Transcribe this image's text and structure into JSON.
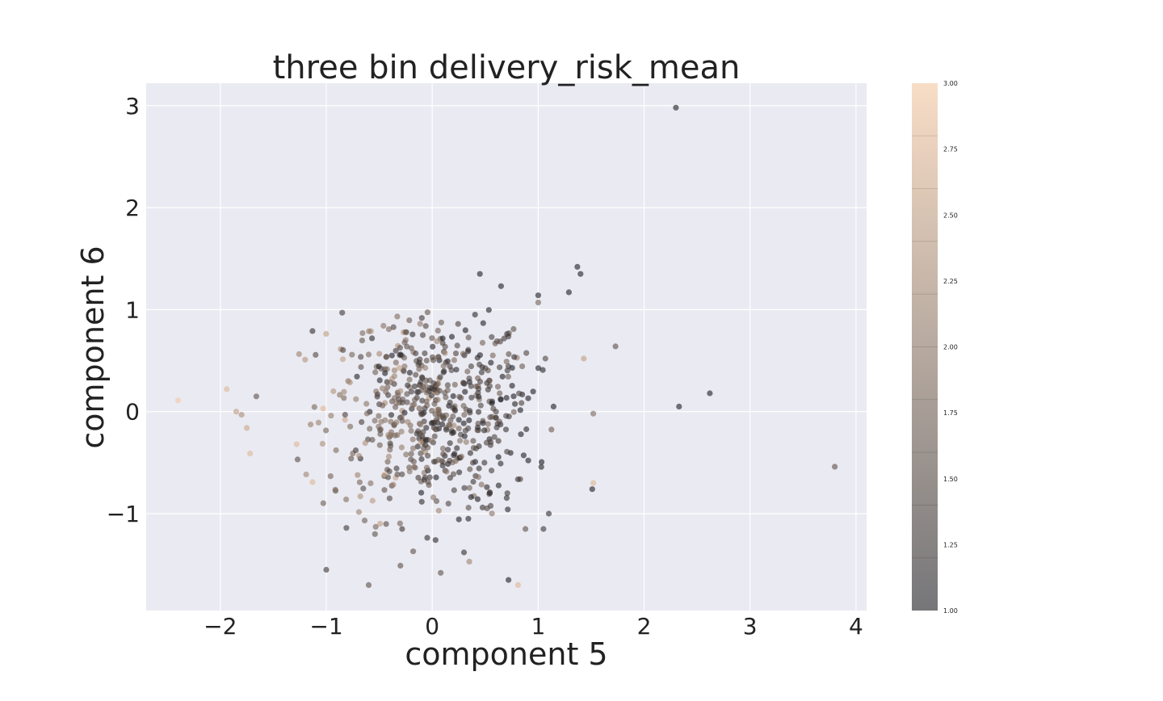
{
  "chart_data": {
    "type": "scatter",
    "title": "three bin delivery_risk_mean",
    "xlabel": "component 5",
    "ylabel": "component 6",
    "xlim": [
      -2.7,
      4.1
    ],
    "ylim": [
      -1.95,
      3.22
    ],
    "xticks": [
      -2,
      -1,
      0,
      1,
      2,
      3,
      4
    ],
    "yticks": [
      -1,
      0,
      1,
      2,
      3
    ],
    "xtick_labels": [
      "−2",
      "−1",
      "0",
      "1",
      "2",
      "3",
      "4"
    ],
    "ytick_labels": [
      "−1",
      "0",
      "1",
      "2",
      "3"
    ],
    "grid": true,
    "colorbar": {
      "min": 1.0,
      "max": 3.0,
      "ticks": [
        1.0,
        1.25,
        1.5,
        1.75,
        2.0,
        2.25,
        2.5,
        2.75,
        3.0
      ],
      "tick_labels": [
        "1.00",
        "1.25",
        "1.50",
        "1.75",
        "2.00",
        "2.25",
        "2.50",
        "2.75",
        "3.00"
      ],
      "levels": 10,
      "colors": [
        "#1a1a1f",
        "#f4c7a1"
      ]
    },
    "n_bulk_points": 620,
    "points": [
      [
        2.3,
        2.98,
        1.0
      ],
      [
        2.62,
        0.18,
        1.0
      ],
      [
        2.33,
        0.05,
        1.0
      ],
      [
        3.8,
        -0.54,
        1.6
      ],
      [
        -2.4,
        0.11,
        3.0
      ],
      [
        -1.94,
        0.22,
        2.8
      ],
      [
        -1.85,
        0.0,
        2.5
      ],
      [
        -1.75,
        -0.16,
        2.6
      ],
      [
        -1.72,
        -0.41,
        2.8
      ],
      [
        -1.66,
        0.15,
        1.6
      ],
      [
        -1.8,
        -0.03,
        2.3
      ],
      [
        1.73,
        0.64,
        1.6
      ],
      [
        1.52,
        -0.02,
        1.9
      ],
      [
        1.52,
        -0.7,
        2.8
      ],
      [
        1.51,
        -0.76,
        1.0
      ],
      [
        1.37,
        1.42,
        1.0
      ],
      [
        1.4,
        1.35,
        1.0
      ],
      [
        1.29,
        1.17,
        1.0
      ],
      [
        1.43,
        0.52,
        2.5
      ],
      [
        1.0,
        1.14,
        1.0
      ],
      [
        1.0,
        1.07,
        1.8
      ],
      [
        0.45,
        1.35,
        1.0
      ],
      [
        0.65,
        1.23,
        1.0
      ],
      [
        -0.6,
        -1.7,
        1.6
      ],
      [
        0.72,
        -1.65,
        1.0
      ],
      [
        0.81,
        -1.7,
        2.8
      ],
      [
        -1.0,
        -1.55,
        1.3
      ],
      [
        0.08,
        -1.58,
        1.6
      ],
      [
        0.3,
        -1.38,
        1.2
      ],
      [
        0.35,
        -1.47,
        2.2
      ],
      [
        -0.18,
        -1.37,
        1.6
      ],
      [
        -0.3,
        -1.51,
        1.6
      ],
      [
        1.05,
        -1.15,
        1.3
      ],
      [
        0.88,
        -1.15,
        1.6
      ],
      [
        1.1,
        -1.0,
        1.2
      ],
      [
        -0.81,
        -1.14,
        1.3
      ],
      [
        -0.54,
        -1.2,
        1.6
      ],
      [
        -1.13,
        -0.69,
        2.8
      ],
      [
        -1.28,
        -0.32,
        2.8
      ],
      [
        -1.03,
        0.03,
        2.8
      ],
      [
        -1.2,
        0.51,
        2.4
      ],
      [
        -1.13,
        0.79,
        1.2
      ],
      [
        -0.85,
        0.97,
        1.3
      ],
      [
        -0.38,
        0.55,
        1.0
      ],
      [
        -0.3,
        0.56,
        1.0
      ]
    ]
  }
}
